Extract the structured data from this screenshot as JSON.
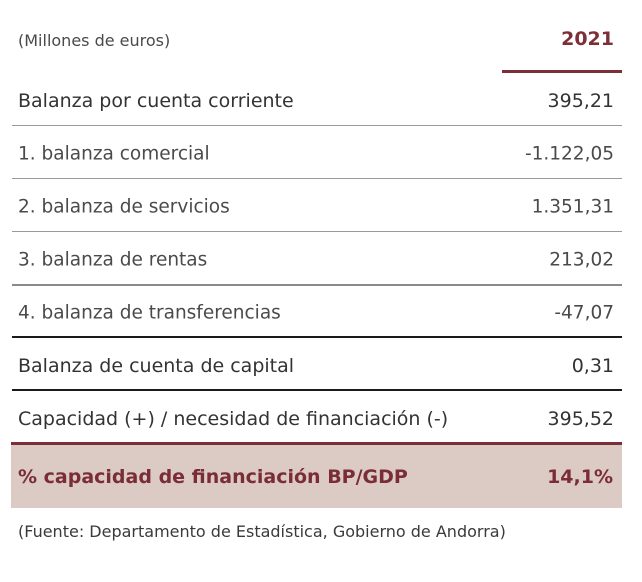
{
  "header": {
    "unit_label": "(Millones de euros)",
    "year": "2021"
  },
  "rows": [
    {
      "label": "Balanza por cuenta corriente",
      "value": "395,21"
    },
    {
      "label": "1. balanza comercial",
      "value": "-1.122,05"
    },
    {
      "label": "2. balanza de servicios",
      "value": "1.351,31"
    },
    {
      "label": "3. balanza de rentas",
      "value": "213,02"
    },
    {
      "label": "4. balanza de transferencias",
      "value": "-47,07"
    },
    {
      "label": "Balanza de cuenta de capital",
      "value": "0,31"
    },
    {
      "label": "Capacidad (+) / necesidad de financiación (-)",
      "value": "395,52"
    }
  ],
  "highlight": {
    "label": "% capacidad de financiación BP/GDP",
    "value": "14,1%"
  },
  "source": "(Fuente: Departamento de Estadística, Gobierno de Andorra)",
  "colors": {
    "accent": "#7d2f37",
    "highlight_bg": "#dccac4"
  }
}
